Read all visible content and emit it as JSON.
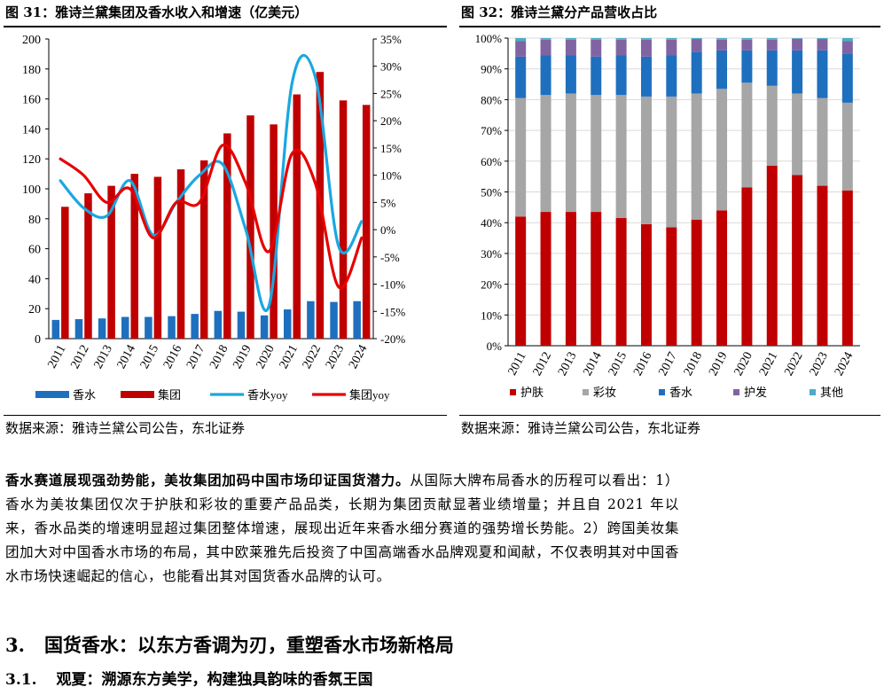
{
  "figure31": {
    "title": "图 31：雅诗兰黛集团及香水收入和增速（亿美元）",
    "source": "数据来源：雅诗兰黛公司公告，东北证券"
  },
  "figure32": {
    "title": "图 32：雅诗兰黛分产品营收占比",
    "source": "数据来源：雅诗兰黛公司公告，东北证券"
  },
  "chart_data": [
    {
      "type": "bar",
      "title": "雅诗兰黛集团及香水收入和增速（亿美元）",
      "categories": [
        "2011",
        "2012",
        "2013",
        "2014",
        "2015",
        "2016",
        "2017",
        "2018",
        "2019",
        "2020",
        "2021",
        "2022",
        "2023",
        "2024"
      ],
      "series": [
        {
          "name": "香水",
          "type": "bar",
          "axis": "left",
          "color": "#1f6fbf",
          "values": [
            12.5,
            13,
            13.5,
            14.5,
            14.5,
            15,
            16.5,
            18.5,
            18,
            15.5,
            19.5,
            25,
            24.5,
            25
          ]
        },
        {
          "name": "集团",
          "type": "bar",
          "axis": "left",
          "color": "#c00000",
          "values": [
            88,
            97,
            102,
            110,
            108,
            113,
            119,
            137,
            149,
            143,
            163,
            178,
            159,
            156
          ]
        },
        {
          "name": "香水yoy",
          "type": "line",
          "axis": "right",
          "color": "#1aa7e0",
          "values": [
            9,
            4,
            2.5,
            9,
            -1,
            5,
            10,
            12,
            0,
            -14,
            27,
            28,
            -3,
            1.5
          ]
        },
        {
          "name": "集团yoy",
          "type": "line",
          "axis": "right",
          "color": "#e80000",
          "values": [
            13,
            10,
            5,
            7.5,
            -1.5,
            5,
            5,
            15.5,
            8.5,
            -4,
            14,
            8.5,
            -10.5,
            -1.5
          ]
        }
      ],
      "ylim_left": [
        0,
        200
      ],
      "yticks_left": [
        "0",
        "20",
        "40",
        "60",
        "80",
        "100",
        "120",
        "140",
        "160",
        "180",
        "200"
      ],
      "ylim_right": [
        -20,
        35
      ],
      "yticks_right": [
        "-20%",
        "-15%",
        "-10%",
        "-5%",
        "0%",
        "5%",
        "10%",
        "15%",
        "20%",
        "25%",
        "30%",
        "35%"
      ],
      "legend": [
        "香水",
        "集团",
        "香水yoy",
        "集团yoy"
      ],
      "legend_position": "bottom"
    },
    {
      "type": "bar",
      "stacked": true,
      "title": "雅诗兰黛分产品营收占比",
      "categories": [
        "2011",
        "2012",
        "2013",
        "2014",
        "2015",
        "2016",
        "2017",
        "2018",
        "2019",
        "2020",
        "2021",
        "2022",
        "2023",
        "2024"
      ],
      "series": [
        {
          "name": "护肤",
          "color": "#c00000",
          "values": [
            42,
            43.5,
            43.5,
            43.5,
            41.5,
            39.5,
            38.5,
            41,
            44,
            51.5,
            58.5,
            55.5,
            52,
            50.5
          ]
        },
        {
          "name": "彩妆",
          "color": "#a6a6a6",
          "values": [
            38.5,
            38,
            38.5,
            38,
            40,
            41.5,
            42.5,
            41,
            39.5,
            34,
            26,
            26.5,
            28.5,
            28.5
          ]
        },
        {
          "name": "香水",
          "color": "#1f6fbf",
          "values": [
            13.5,
            13,
            12.5,
            12.5,
            13,
            13,
            13.5,
            13.5,
            12.5,
            10.5,
            11.5,
            14,
            15.5,
            16
          ]
        },
        {
          "name": "护发",
          "color": "#8064a2",
          "values": [
            5,
            5,
            5,
            5.5,
            5,
            5.5,
            5,
            4.2,
            3.5,
            3.5,
            3.5,
            3.8,
            3.7,
            4
          ]
        },
        {
          "name": "其他",
          "color": "#4bacc6",
          "values": [
            1,
            0.5,
            0.5,
            0.5,
            0.5,
            0.5,
            0.5,
            0.3,
            0.5,
            0.5,
            0.5,
            0.2,
            0.3,
            1
          ]
        }
      ],
      "ylim": [
        0,
        100
      ],
      "yticks": [
        "0%",
        "10%",
        "20%",
        "30%",
        "40%",
        "50%",
        "60%",
        "70%",
        "80%",
        "90%",
        "100%"
      ],
      "legend": [
        "护肤",
        "彩妆",
        "香水",
        "护发",
        "其他"
      ],
      "legend_position": "bottom"
    }
  ],
  "article": {
    "para_lead": "香水赛道展现强劲势能，美妆集团加码中国市场印证国货潜力。",
    "para_body": "从国际大牌布局香水的历程可以看出：1）香水为美妆集团仅次于护肤和彩妆的重要产品品类，长期为集团贡献显著业绩增量；并且自 2021 年以来，香水品类的增速明显超过集团整体增速，展现出近年来香水细分赛道的强势增长势能。2）跨国美妆集团加大对中国香水市场的布局，其中欧莱雅先后投资了中国高端香水品牌观夏和闻献，不仅表明其对中国香水市场快速崛起的信心，也能看出其对国货香水品牌的认可。",
    "section_number": "3.",
    "section_title": "国货香水：以东方香调为刃，重塑香水市场新格局",
    "subsection_number": "3.1.",
    "subsection_title": "观夏：溯源东方美学，构建独具韵味的香氛王国"
  }
}
